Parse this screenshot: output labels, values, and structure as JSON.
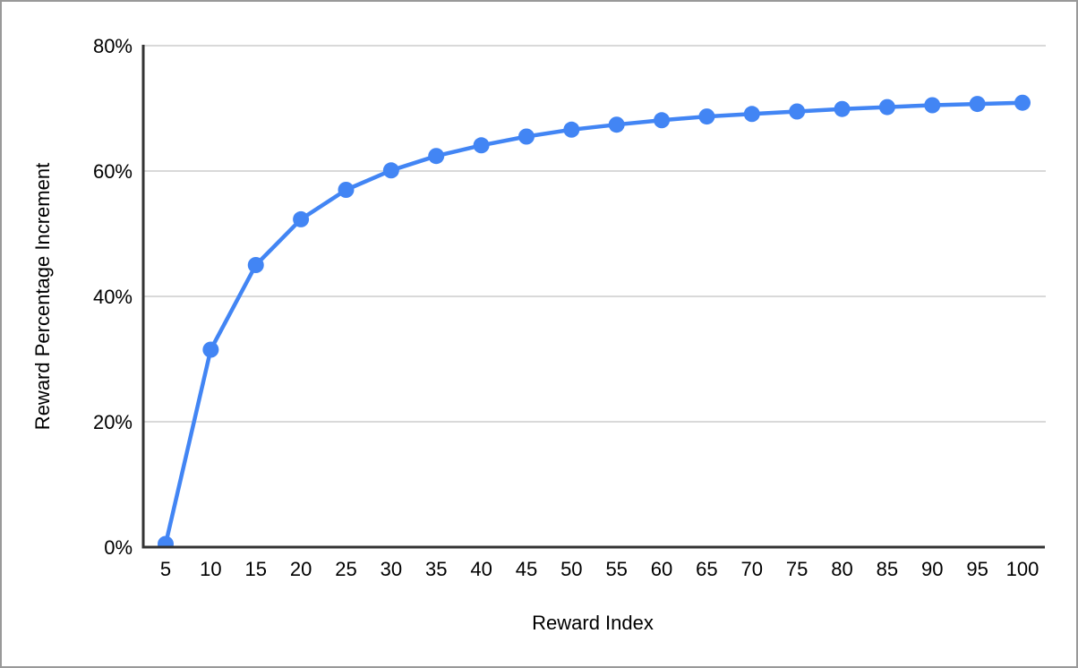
{
  "frame": {
    "border_color": "#999999",
    "background_color": "#ffffff"
  },
  "chart_data": {
    "type": "line",
    "title": "",
    "xlabel": "Reward Index",
    "ylabel": "Reward Percentage Increment",
    "x": [
      5,
      10,
      15,
      20,
      25,
      30,
      35,
      40,
      45,
      50,
      55,
      60,
      65,
      70,
      75,
      80,
      85,
      90,
      95,
      100
    ],
    "series": [
      {
        "name": "Reward Percentage Increment",
        "values": [
          0.5,
          31.5,
          45.0,
          52.3,
          57.0,
          60.1,
          62.4,
          64.1,
          65.5,
          66.6,
          67.4,
          68.1,
          68.7,
          69.1,
          69.5,
          69.9,
          70.2,
          70.5,
          70.7,
          70.9
        ],
        "color": "#4285f4",
        "marker": "circle",
        "marker_radius": 9,
        "line_width": 4.5
      }
    ],
    "xlim": [
      5,
      100
    ],
    "ylim": [
      0,
      80
    ],
    "y_ticks": [
      0,
      20,
      40,
      60,
      80
    ],
    "y_tick_labels": [
      "0%",
      "20%",
      "40%",
      "60%",
      "80%"
    ],
    "x_tick_labels": [
      "5",
      "10",
      "15",
      "20",
      "25",
      "30",
      "35",
      "40",
      "45",
      "50",
      "55",
      "60",
      "65",
      "70",
      "75",
      "80",
      "85",
      "90",
      "95",
      "100"
    ],
    "grid": "horizontal",
    "gridline_color": "#d9d9d9",
    "axis_color": "#333333",
    "tick_text_color": "#000000",
    "legend": "none"
  }
}
